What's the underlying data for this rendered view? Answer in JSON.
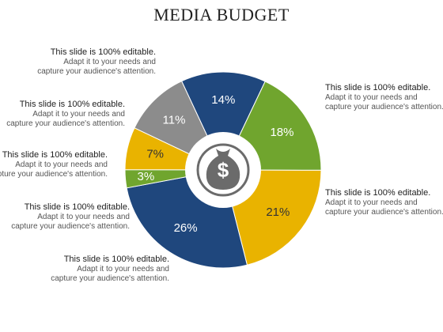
{
  "title": "MEDIA BUDGET",
  "chart_data": {
    "type": "pie",
    "style": "donut",
    "title": "MEDIA BUDGET",
    "slices": [
      {
        "label": "14%",
        "value": 14,
        "color": "#1f477d"
      },
      {
        "label": "18%",
        "value": 18,
        "color": "#70a52e"
      },
      {
        "label": "21%",
        "value": 21,
        "color": "#e9b300"
      },
      {
        "label": "26%",
        "value": 26,
        "color": "#1f477d"
      },
      {
        "label": "3%",
        "value": 3,
        "color": "#70a52e"
      },
      {
        "label": "7%",
        "value": 7,
        "color": "#e9b300"
      },
      {
        "label": "11%",
        "value": 11,
        "color": "#8c8c8c"
      }
    ],
    "center_icon": "money-bag-icon"
  },
  "callouts": [
    {
      "lead": "This slide is 100% editable.",
      "body": "Adapt it to your needs and capture your audience's attention."
    },
    {
      "lead": "This slide is 100% editable.",
      "body": "Adapt it to your needs and capture your audience's attention."
    },
    {
      "lead": "This slide is 100% editable.",
      "body": "Adapt it to your needs and capture your audience's attention."
    },
    {
      "lead": "This slide is 100% editable.",
      "body": "Adapt it to your needs and capture your audience's attention."
    },
    {
      "lead": "This slide is 100% editable.",
      "body": "Adapt it to your needs and capture your audience's attention."
    },
    {
      "lead": "This slide is 100% editable.",
      "body": "Adapt it to your needs and capture your audience's attention."
    },
    {
      "lead": "This slide is 100% editable.",
      "body": "Adapt it to your needs and capture your audience's attention."
    }
  ]
}
